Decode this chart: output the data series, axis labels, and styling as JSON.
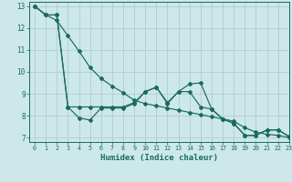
{
  "xlabel": "Humidex (Indice chaleur)",
  "background_color": "#cce8e8",
  "grid_color": "#b0cccc",
  "line_color": "#1a6b5a",
  "xlim": [
    -0.5,
    23
  ],
  "ylim": [
    6.8,
    13.2
  ],
  "yticks": [
    7,
    8,
    9,
    10,
    11,
    12,
    13
  ],
  "xticks": [
    0,
    1,
    2,
    3,
    4,
    5,
    6,
    7,
    8,
    9,
    10,
    11,
    12,
    13,
    14,
    15,
    16,
    17,
    18,
    19,
    20,
    21,
    22,
    23
  ],
  "line1_x": [
    0,
    1,
    2,
    3,
    4,
    5,
    6,
    7,
    8,
    9,
    10,
    11,
    12,
    13,
    14,
    15,
    16,
    17,
    18,
    19,
    20,
    21,
    22,
    23
  ],
  "line1_y": [
    13.0,
    12.6,
    12.6,
    8.4,
    8.4,
    8.4,
    8.4,
    8.4,
    8.4,
    8.6,
    9.1,
    9.3,
    8.6,
    9.1,
    9.1,
    8.4,
    8.3,
    7.85,
    7.65,
    7.1,
    7.1,
    7.35,
    7.35,
    7.05
  ],
  "line2_x": [
    0,
    1,
    2,
    3,
    4,
    5,
    6,
    7,
    8,
    9,
    10,
    11,
    12,
    13,
    14,
    15,
    16,
    17,
    18,
    19,
    20,
    21,
    22,
    23
  ],
  "line2_y": [
    13.0,
    12.6,
    12.6,
    8.4,
    7.9,
    7.8,
    8.35,
    8.35,
    8.35,
    8.55,
    9.1,
    9.3,
    8.55,
    9.1,
    9.45,
    9.5,
    8.3,
    7.85,
    7.65,
    7.1,
    7.1,
    7.35,
    7.35,
    7.05
  ],
  "line3_x": [
    0,
    1,
    2,
    3,
    4,
    5,
    6,
    7,
    8,
    9,
    10,
    11,
    12,
    13,
    14,
    15,
    16,
    17,
    18,
    19,
    20,
    21,
    22,
    23
  ],
  "line3_y": [
    13.0,
    12.6,
    12.35,
    11.65,
    10.95,
    10.2,
    9.7,
    9.35,
    9.05,
    8.7,
    8.55,
    8.45,
    8.35,
    8.25,
    8.15,
    8.05,
    7.95,
    7.85,
    7.75,
    7.45,
    7.25,
    7.15,
    7.1,
    7.0
  ]
}
